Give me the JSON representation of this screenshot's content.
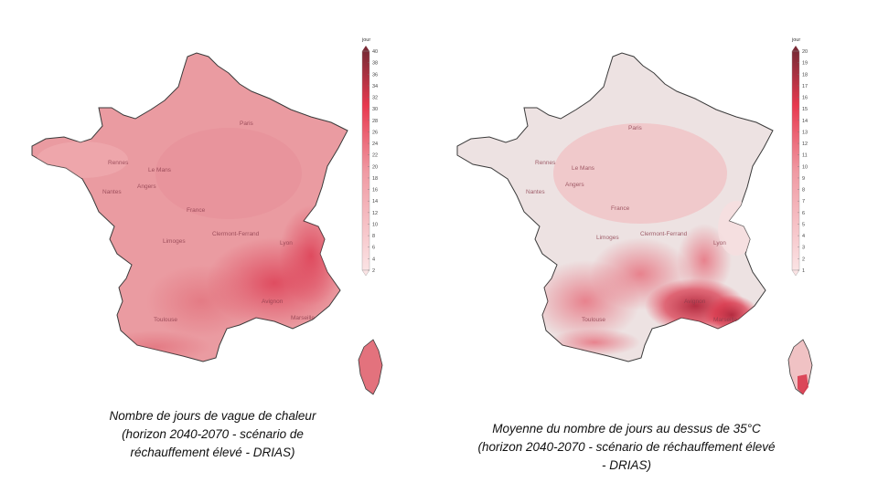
{
  "maps": [
    {
      "id": "left",
      "caption": "Nombre de jours de vague de chaleur (horizon 2040-2070 - scénario de réchauffement élevé - DRIAS)",
      "legend_unit": "jour",
      "legend_ticks": [
        "2",
        "4",
        "6",
        "8",
        "10",
        "12",
        "14",
        "16",
        "18",
        "20",
        "22",
        "24",
        "26",
        "28",
        "30",
        "32",
        "34",
        "36",
        "38",
        "40"
      ],
      "base_color": "#ea9aa0",
      "cities": [
        "Paris",
        "Rennes",
        "Le Mans",
        "Angers",
        "Nantes",
        "France",
        "Limoges",
        "Clermont-Ferrand",
        "Lyon",
        "Toulouse",
        "Avignon",
        "Marseille"
      ]
    },
    {
      "id": "right",
      "caption": "Moyenne du nombre de jours au dessus de 35°C (horizon 2040-2070 - scénario de réchauffement élevé - DRIAS)",
      "legend_unit": "jour",
      "legend_ticks": [
        "1",
        "2",
        "3",
        "4",
        "5",
        "6",
        "7",
        "8",
        "9",
        "10",
        "11",
        "12",
        "13",
        "14",
        "15",
        "16",
        "17",
        "18",
        "19",
        "20"
      ],
      "base_color": "#efd6d6",
      "cities": [
        "Paris",
        "Rennes",
        "Le Mans",
        "Angers",
        "Nantes",
        "France",
        "Limoges",
        "Clermont-Ferrand",
        "Lyon",
        "Toulouse",
        "Avignon",
        "Marseille"
      ]
    }
  ],
  "colors": {
    "scale_low": "#fbe3e4",
    "scale_mid": "#e8394f",
    "scale_high": "#7a2a35",
    "border": "#3a3a3a"
  }
}
